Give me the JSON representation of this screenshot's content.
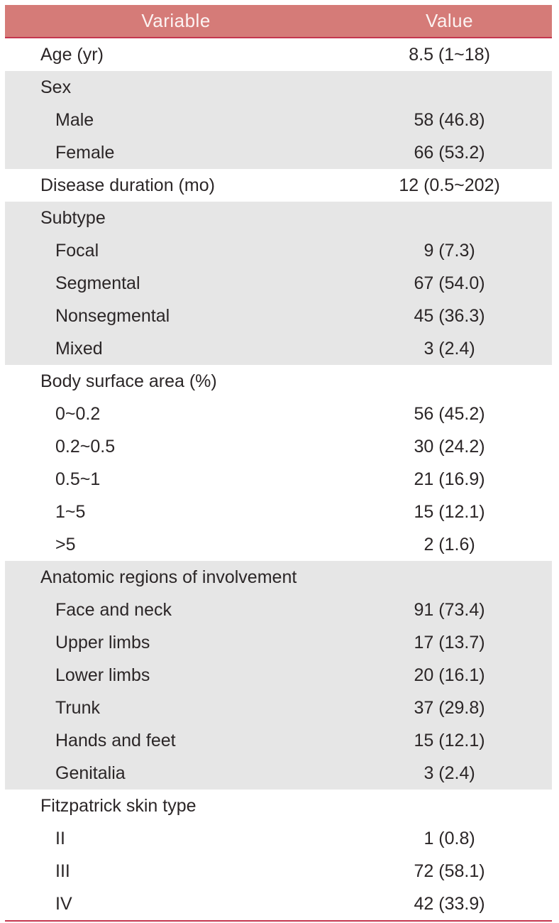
{
  "table": {
    "columns": [
      "Variable",
      "Value"
    ],
    "colors": {
      "header_bg": "#d57b78",
      "header_text": "#fcf3f2",
      "rule": "#c5364e",
      "shaded_row_bg": "#e6e6e6",
      "text": "#2b2627"
    },
    "sections": [
      {
        "shaded": false,
        "rows": [
          {
            "label": "Age (yr)",
            "value": "8.5 (1~18)",
            "indent": false
          }
        ]
      },
      {
        "shaded": true,
        "rows": [
          {
            "label": "Sex",
            "value": "",
            "indent": false
          },
          {
            "label": "Male",
            "value": "58 (46.8)",
            "indent": true
          },
          {
            "label": "Female",
            "value": "66 (53.2)",
            "indent": true
          }
        ]
      },
      {
        "shaded": false,
        "rows": [
          {
            "label": "Disease duration (mo)",
            "value": "12 (0.5~202)",
            "indent": false
          }
        ]
      },
      {
        "shaded": true,
        "rows": [
          {
            "label": "Subtype",
            "value": "",
            "indent": false
          },
          {
            "label": "Focal",
            "value": "9 (7.3)",
            "indent": true
          },
          {
            "label": "Segmental",
            "value": "67 (54.0)",
            "indent": true
          },
          {
            "label": "Nonsegmental",
            "value": "45 (36.3)",
            "indent": true
          },
          {
            "label": "Mixed",
            "value": "3 (2.4)",
            "indent": true
          }
        ]
      },
      {
        "shaded": false,
        "rows": [
          {
            "label": "Body surface area (%)",
            "value": "",
            "indent": false
          },
          {
            "label": "0~0.2",
            "value": "56 (45.2)",
            "indent": true
          },
          {
            "label": "0.2~0.5",
            "value": "30 (24.2)",
            "indent": true
          },
          {
            "label": "0.5~1",
            "value": "21 (16.9)",
            "indent": true
          },
          {
            "label": "1~5",
            "value": "15 (12.1)",
            "indent": true
          },
          {
            "label": ">5",
            "value": "2 (1.6)",
            "indent": true
          }
        ]
      },
      {
        "shaded": true,
        "rows": [
          {
            "label": "Anatomic regions of involvement",
            "value": "",
            "indent": false
          },
          {
            "label": "Face and neck",
            "value": "91 (73.4)",
            "indent": true
          },
          {
            "label": "Upper limbs",
            "value": "17 (13.7)",
            "indent": true
          },
          {
            "label": "Lower limbs",
            "value": "20 (16.1)",
            "indent": true
          },
          {
            "label": "Trunk",
            "value": "37 (29.8)",
            "indent": true
          },
          {
            "label": "Hands and feet",
            "value": "15 (12.1)",
            "indent": true
          },
          {
            "label": "Genitalia",
            "value": "3 (2.4)",
            "indent": true
          }
        ]
      },
      {
        "shaded": false,
        "rows": [
          {
            "label": "Fitzpatrick skin type",
            "value": "",
            "indent": false
          },
          {
            "label": "II",
            "value": "1 (0.8)",
            "indent": true
          },
          {
            "label": "III",
            "value": "72 (58.1)",
            "indent": true
          },
          {
            "label": "IV",
            "value": "42 (33.9)",
            "indent": true
          }
        ]
      }
    ]
  }
}
